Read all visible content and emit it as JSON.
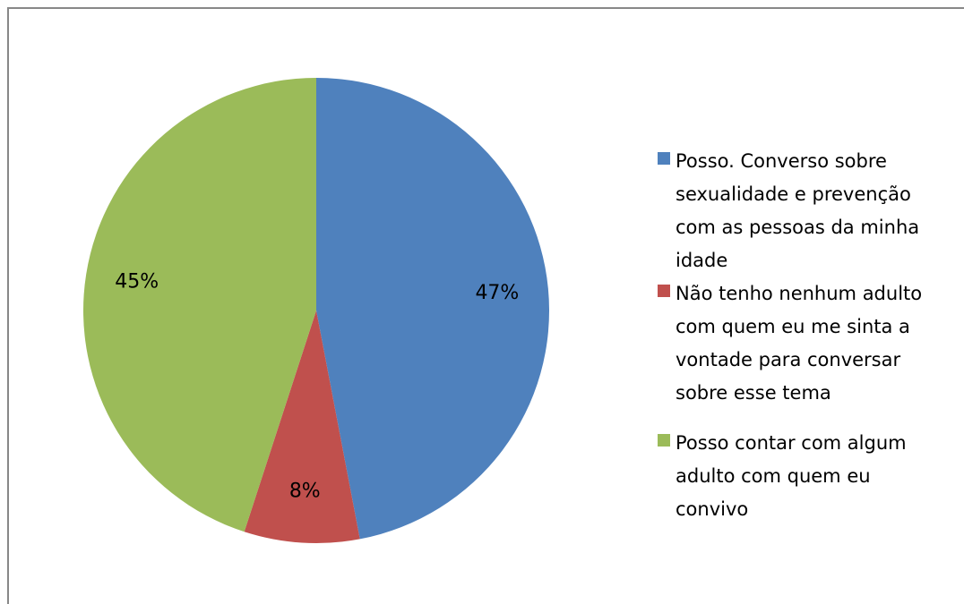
{
  "chart_data": {
    "type": "pie",
    "categories": [
      "Posso. Converso sobre sexualidade e prevenção com as pessoas da minha idade",
      "Não tenho nenhum adulto com quem eu me sinta a vontade para conversar sobre esse tema",
      "Posso contar com algum adulto com quem eu convivo"
    ],
    "values": [
      47,
      8,
      45
    ],
    "value_labels": [
      "47%",
      "8%",
      "45%"
    ],
    "colors": [
      "#4f81bd",
      "#c0504d",
      "#9bbb59"
    ],
    "legend": "right"
  }
}
